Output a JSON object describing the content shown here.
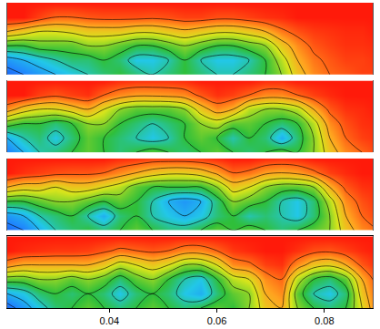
{
  "chart_data": {
    "type": "contour",
    "x": [
      0.021,
      0.024,
      0.027,
      0.03,
      0.033,
      0.036,
      0.039,
      0.042,
      0.045,
      0.048,
      0.051,
      0.054,
      0.057,
      0.06,
      0.063,
      0.066,
      0.069,
      0.072,
      0.075,
      0.078,
      0.081,
      0.084,
      0.087,
      0.09
    ],
    "xlim": [
      0.021,
      0.089
    ],
    "xticks": [
      0.04,
      0.06,
      0.08
    ],
    "tick_labels": "x",
    "zlim": [
      0,
      1
    ],
    "panels": [
      {
        "z": [
          [
            0.15,
            0.2,
            0.25,
            0.3,
            0.35,
            0.4,
            0.45,
            0.5,
            0.45,
            0.4,
            0.45,
            0.5,
            0.45,
            0.4,
            0.4,
            0.45,
            0.5,
            0.6,
            0.75,
            0.85,
            0.9,
            0.92,
            0.95,
            0.95
          ],
          [
            0.25,
            0.3,
            0.35,
            0.4,
            0.45,
            0.45,
            0.5,
            0.45,
            0.35,
            0.35,
            0.4,
            0.5,
            0.4,
            0.35,
            0.35,
            0.4,
            0.5,
            0.65,
            0.8,
            0.88,
            0.92,
            0.95,
            0.95,
            0.97
          ],
          [
            0.5,
            0.5,
            0.55,
            0.55,
            0.55,
            0.6,
            0.6,
            0.55,
            0.5,
            0.5,
            0.55,
            0.6,
            0.55,
            0.5,
            0.5,
            0.55,
            0.6,
            0.75,
            0.85,
            0.92,
            0.95,
            0.97,
            0.97,
            0.98
          ],
          [
            0.8,
            0.75,
            0.7,
            0.7,
            0.72,
            0.75,
            0.75,
            0.75,
            0.72,
            0.72,
            0.75,
            0.78,
            0.75,
            0.72,
            0.72,
            0.75,
            0.8,
            0.88,
            0.93,
            0.96,
            0.97,
            0.98,
            0.98,
            1
          ],
          [
            1,
            1,
            0.95,
            0.9,
            0.9,
            0.92,
            0.93,
            0.93,
            0.93,
            0.92,
            0.93,
            0.95,
            0.95,
            0.93,
            0.93,
            0.95,
            0.97,
            0.98,
            1,
            1,
            1,
            1,
            1,
            1
          ],
          [
            1,
            1,
            1,
            1,
            1,
            1,
            1,
            1,
            1,
            1,
            1,
            1,
            1,
            1,
            1,
            1,
            1,
            1,
            1,
            1,
            1,
            1,
            1,
            1
          ]
        ]
      },
      {
        "z": [
          [
            0.2,
            0.3,
            0.4,
            0.45,
            0.5,
            0.55,
            0.5,
            0.45,
            0.5,
            0.55,
            0.5,
            0.45,
            0.5,
            0.55,
            0.5,
            0.45,
            0.5,
            0.55,
            0.5,
            0.6,
            0.75,
            0.85,
            0.9,
            0.95
          ],
          [
            0.3,
            0.4,
            0.45,
            0.35,
            0.45,
            0.55,
            0.5,
            0.45,
            0.4,
            0.35,
            0.4,
            0.5,
            0.55,
            0.5,
            0.4,
            0.5,
            0.45,
            0.3,
            0.45,
            0.6,
            0.8,
            0.9,
            0.95,
            0.97
          ],
          [
            0.55,
            0.5,
            0.5,
            0.45,
            0.5,
            0.6,
            0.6,
            0.5,
            0.45,
            0.4,
            0.45,
            0.5,
            0.6,
            0.65,
            0.55,
            0.55,
            0.5,
            0.45,
            0.5,
            0.65,
            0.85,
            0.93,
            0.97,
            0.98
          ],
          [
            0.85,
            0.75,
            0.7,
            0.7,
            0.75,
            0.8,
            0.7,
            0.6,
            0.55,
            0.55,
            0.55,
            0.6,
            0.75,
            0.85,
            0.8,
            0.65,
            0.6,
            0.6,
            0.65,
            0.8,
            0.92,
            0.97,
            0.98,
            1
          ],
          [
            1,
            1,
            0.95,
            0.92,
            0.95,
            0.97,
            0.9,
            0.85,
            0.82,
            0.82,
            0.83,
            0.85,
            0.92,
            0.97,
            0.95,
            0.9,
            0.85,
            0.85,
            0.9,
            0.95,
            0.98,
            1,
            1,
            1
          ],
          [
            1,
            1,
            1,
            1,
            1,
            1,
            1,
            0.98,
            0.97,
            0.97,
            0.97,
            0.98,
            1,
            1,
            1,
            1,
            0.98,
            0.98,
            1,
            1,
            1,
            1,
            1,
            1
          ]
        ]
      },
      {
        "z": [
          [
            0.15,
            0.2,
            0.3,
            0.4,
            0.45,
            0.5,
            0.45,
            0.5,
            0.55,
            0.5,
            0.45,
            0.45,
            0.5,
            0.55,
            0.5,
            0.55,
            0.5,
            0.45,
            0.5,
            0.55,
            0.6,
            0.75,
            0.85,
            0.9
          ],
          [
            0.25,
            0.3,
            0.4,
            0.45,
            0.5,
            0.4,
            0.3,
            0.45,
            0.5,
            0.4,
            0.35,
            0.3,
            0.35,
            0.45,
            0.5,
            0.4,
            0.45,
            0.4,
            0.35,
            0.45,
            0.6,
            0.8,
            0.9,
            0.95
          ],
          [
            0.5,
            0.5,
            0.55,
            0.6,
            0.6,
            0.55,
            0.5,
            0.55,
            0.5,
            0.4,
            0.3,
            0.25,
            0.3,
            0.45,
            0.6,
            0.55,
            0.5,
            0.4,
            0.35,
            0.45,
            0.65,
            0.85,
            0.93,
            0.97
          ],
          [
            0.8,
            0.75,
            0.75,
            0.7,
            0.75,
            0.75,
            0.7,
            0.65,
            0.55,
            0.5,
            0.5,
            0.5,
            0.5,
            0.6,
            0.75,
            0.7,
            0.6,
            0.55,
            0.55,
            0.6,
            0.8,
            0.92,
            0.97,
            0.98
          ],
          [
            1,
            0.97,
            0.95,
            0.93,
            0.92,
            0.92,
            0.9,
            0.85,
            0.8,
            0.75,
            0.72,
            0.72,
            0.75,
            0.82,
            0.9,
            0.88,
            0.82,
            0.8,
            0.82,
            0.88,
            0.95,
            0.98,
            1,
            1
          ],
          [
            1,
            1,
            1,
            1,
            1,
            1,
            1,
            0.98,
            0.97,
            0.95,
            0.95,
            0.95,
            0.96,
            0.98,
            1,
            1,
            0.98,
            0.97,
            0.98,
            1,
            1,
            1,
            1,
            1
          ]
        ]
      },
      {
        "z": [
          [
            0.15,
            0.25,
            0.35,
            0.45,
            0.5,
            0.55,
            0.5,
            0.45,
            0.5,
            0.55,
            0.5,
            0.45,
            0.5,
            0.55,
            0.5,
            0.6,
            0.75,
            0.8,
            0.6,
            0.5,
            0.45,
            0.5,
            0.7,
            0.9
          ],
          [
            0.3,
            0.35,
            0.45,
            0.5,
            0.45,
            0.5,
            0.45,
            0.35,
            0.45,
            0.5,
            0.45,
            0.35,
            0.3,
            0.45,
            0.55,
            0.6,
            0.8,
            0.85,
            0.55,
            0.4,
            0.35,
            0.45,
            0.75,
            0.92
          ],
          [
            0.55,
            0.55,
            0.6,
            0.6,
            0.55,
            0.6,
            0.55,
            0.45,
            0.55,
            0.6,
            0.5,
            0.4,
            0.35,
            0.5,
            0.65,
            0.7,
            0.85,
            0.9,
            0.65,
            0.5,
            0.45,
            0.55,
            0.8,
            0.95
          ],
          [
            0.85,
            0.8,
            0.8,
            0.8,
            0.8,
            0.8,
            0.75,
            0.65,
            0.7,
            0.75,
            0.7,
            0.6,
            0.6,
            0.7,
            0.85,
            0.88,
            0.95,
            0.97,
            0.85,
            0.75,
            0.72,
            0.8,
            0.92,
            0.98
          ],
          [
            1,
            0.98,
            0.97,
            0.96,
            0.96,
            0.95,
            0.92,
            0.88,
            0.9,
            0.92,
            0.9,
            0.85,
            0.85,
            0.9,
            0.96,
            0.98,
            1,
            1,
            0.97,
            0.93,
            0.92,
            0.95,
            0.98,
            1
          ],
          [
            1,
            1,
            1,
            1,
            1,
            1,
            1,
            1,
            1,
            1,
            1,
            1,
            1,
            1,
            1,
            1,
            1,
            1,
            1,
            1,
            1,
            1,
            1,
            1
          ]
        ]
      }
    ]
  }
}
